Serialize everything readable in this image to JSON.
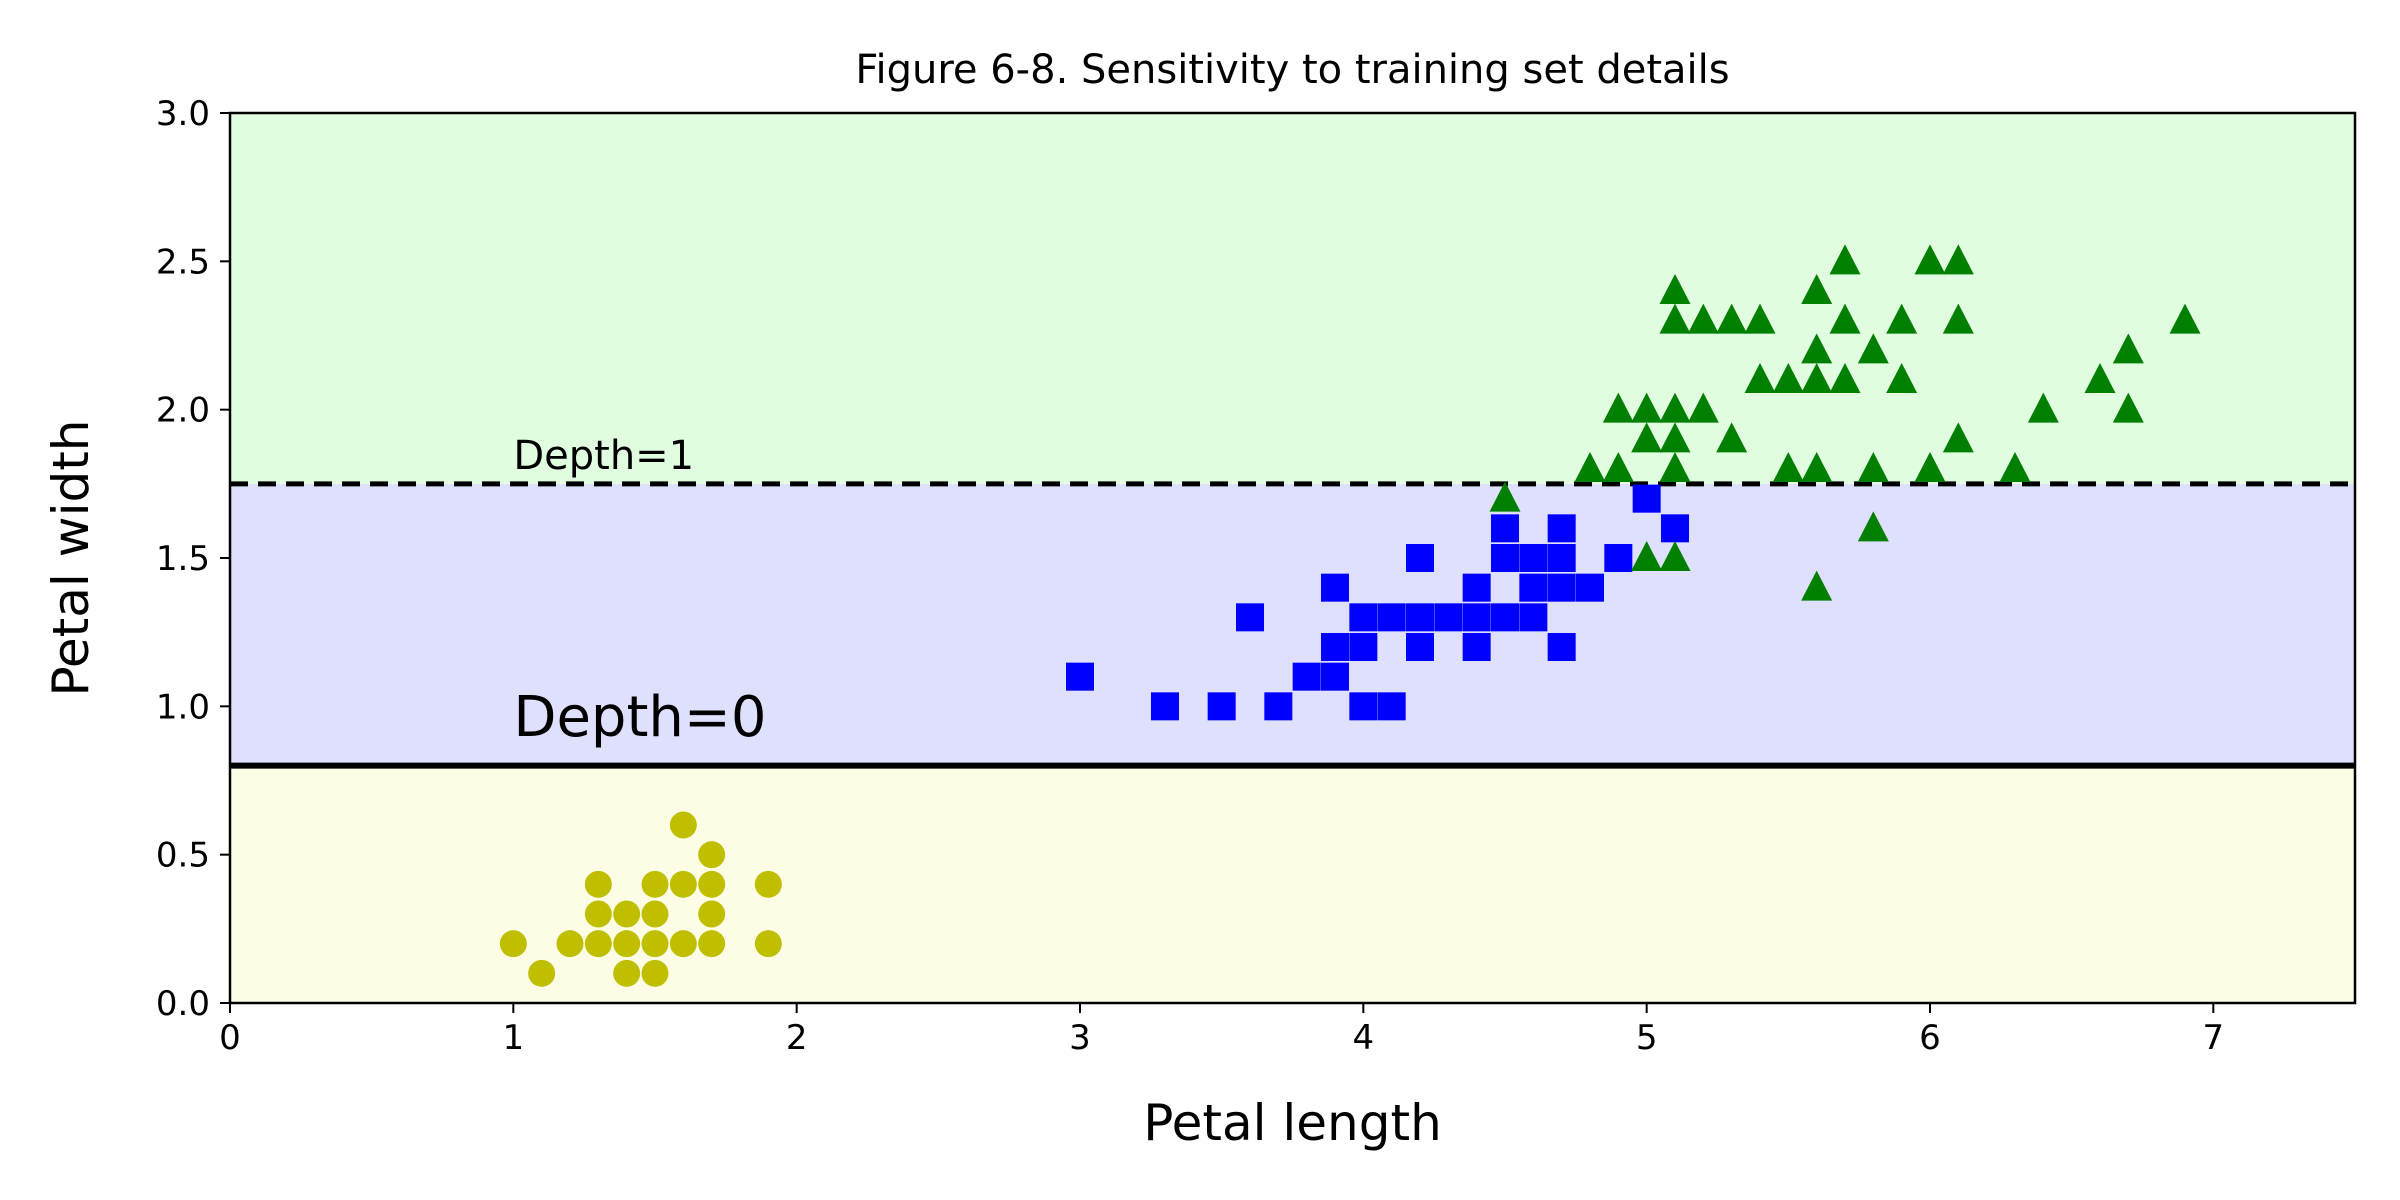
{
  "chart_data": {
    "type": "scatter",
    "title": "Figure 6-8. Sensitivity to training set details",
    "xlabel": "Petal length",
    "ylabel": "Petal width",
    "xlim": [
      0,
      7.5
    ],
    "ylim": [
      0,
      3.0
    ],
    "xticks": [
      0,
      1,
      2,
      3,
      4,
      5,
      6,
      7
    ],
    "xtick_labels": [
      "0",
      "1",
      "2",
      "3",
      "4",
      "5",
      "6",
      "7"
    ],
    "yticks": [
      0.0,
      0.5,
      1.0,
      1.5,
      2.0,
      2.5,
      3.0
    ],
    "ytick_labels": [
      "0.0",
      "0.5",
      "1.0",
      "1.5",
      "2.0",
      "2.5",
      "3.0"
    ],
    "grid": false,
    "regions": [
      {
        "y_from": 0.0,
        "y_to": 0.8,
        "color": "#fdfde6"
      },
      {
        "y_from": 0.8,
        "y_to": 1.75,
        "color": "#dfdffe"
      },
      {
        "y_from": 1.75,
        "y_to": 3.0,
        "color": "#e0fde0"
      }
    ],
    "boundaries": [
      {
        "y": 0.8,
        "style": "solid",
        "label": "Depth=0",
        "label_x": 1.0,
        "label_y": 0.9
      },
      {
        "y": 1.75,
        "style": "dashed",
        "label": "Depth=1",
        "label_x": 1.0,
        "label_y": 1.8
      }
    ],
    "series": [
      {
        "marker": "circle",
        "color": "#bfbf00",
        "points": [
          [
            1.0,
            0.2
          ],
          [
            1.1,
            0.1
          ],
          [
            1.2,
            0.2
          ],
          [
            1.3,
            0.2
          ],
          [
            1.3,
            0.3
          ],
          [
            1.3,
            0.4
          ],
          [
            1.4,
            0.1
          ],
          [
            1.4,
            0.2
          ],
          [
            1.4,
            0.3
          ],
          [
            1.5,
            0.1
          ],
          [
            1.5,
            0.2
          ],
          [
            1.5,
            0.3
          ],
          [
            1.5,
            0.4
          ],
          [
            1.6,
            0.2
          ],
          [
            1.6,
            0.4
          ],
          [
            1.6,
            0.6
          ],
          [
            1.7,
            0.2
          ],
          [
            1.7,
            0.3
          ],
          [
            1.7,
            0.4
          ],
          [
            1.7,
            0.5
          ],
          [
            1.9,
            0.2
          ],
          [
            1.9,
            0.4
          ]
        ]
      },
      {
        "marker": "square",
        "color": "#0000ff",
        "points": [
          [
            3.0,
            1.1
          ],
          [
            3.3,
            1.0
          ],
          [
            3.5,
            1.0
          ],
          [
            3.6,
            1.3
          ],
          [
            3.7,
            1.0
          ],
          [
            3.8,
            1.1
          ],
          [
            3.9,
            1.1
          ],
          [
            3.9,
            1.2
          ],
          [
            3.9,
            1.4
          ],
          [
            4.0,
            1.0
          ],
          [
            4.0,
            1.2
          ],
          [
            4.0,
            1.3
          ],
          [
            4.1,
            1.0
          ],
          [
            4.1,
            1.3
          ],
          [
            4.2,
            1.2
          ],
          [
            4.2,
            1.3
          ],
          [
            4.2,
            1.5
          ],
          [
            4.3,
            1.3
          ],
          [
            4.4,
            1.2
          ],
          [
            4.4,
            1.3
          ],
          [
            4.4,
            1.4
          ],
          [
            4.5,
            1.3
          ],
          [
            4.5,
            1.5
          ],
          [
            4.5,
            1.6
          ],
          [
            4.6,
            1.3
          ],
          [
            4.6,
            1.4
          ],
          [
            4.6,
            1.5
          ],
          [
            4.7,
            1.2
          ],
          [
            4.7,
            1.4
          ],
          [
            4.7,
            1.5
          ],
          [
            4.7,
            1.6
          ],
          [
            4.8,
            1.4
          ],
          [
            4.9,
            1.5
          ],
          [
            5.0,
            1.7
          ],
          [
            5.1,
            1.6
          ]
        ]
      },
      {
        "marker": "triangle",
        "color": "#007f00",
        "points": [
          [
            4.5,
            1.7
          ],
          [
            4.8,
            1.8
          ],
          [
            4.9,
            1.8
          ],
          [
            4.9,
            2.0
          ],
          [
            5.0,
            1.5
          ],
          [
            5.0,
            1.9
          ],
          [
            5.0,
            2.0
          ],
          [
            5.1,
            1.5
          ],
          [
            5.1,
            1.8
          ],
          [
            5.1,
            1.9
          ],
          [
            5.1,
            2.0
          ],
          [
            5.1,
            2.3
          ],
          [
            5.1,
            2.4
          ],
          [
            5.2,
            2.0
          ],
          [
            5.2,
            2.3
          ],
          [
            5.3,
            1.9
          ],
          [
            5.3,
            2.3
          ],
          [
            5.4,
            2.1
          ],
          [
            5.4,
            2.3
          ],
          [
            5.5,
            1.8
          ],
          [
            5.5,
            2.1
          ],
          [
            5.6,
            1.4
          ],
          [
            5.6,
            1.8
          ],
          [
            5.6,
            2.1
          ],
          [
            5.6,
            2.2
          ],
          [
            5.6,
            2.4
          ],
          [
            5.7,
            2.1
          ],
          [
            5.7,
            2.3
          ],
          [
            5.7,
            2.5
          ],
          [
            5.8,
            1.6
          ],
          [
            5.8,
            1.8
          ],
          [
            5.8,
            2.2
          ],
          [
            5.9,
            2.1
          ],
          [
            5.9,
            2.3
          ],
          [
            6.0,
            1.8
          ],
          [
            6.0,
            2.5
          ],
          [
            6.1,
            1.9
          ],
          [
            6.1,
            2.3
          ],
          [
            6.1,
            2.5
          ],
          [
            6.3,
            1.8
          ],
          [
            6.4,
            2.0
          ],
          [
            6.6,
            2.1
          ],
          [
            6.7,
            2.0
          ],
          [
            6.7,
            2.2
          ],
          [
            6.9,
            2.3
          ]
        ]
      }
    ]
  }
}
